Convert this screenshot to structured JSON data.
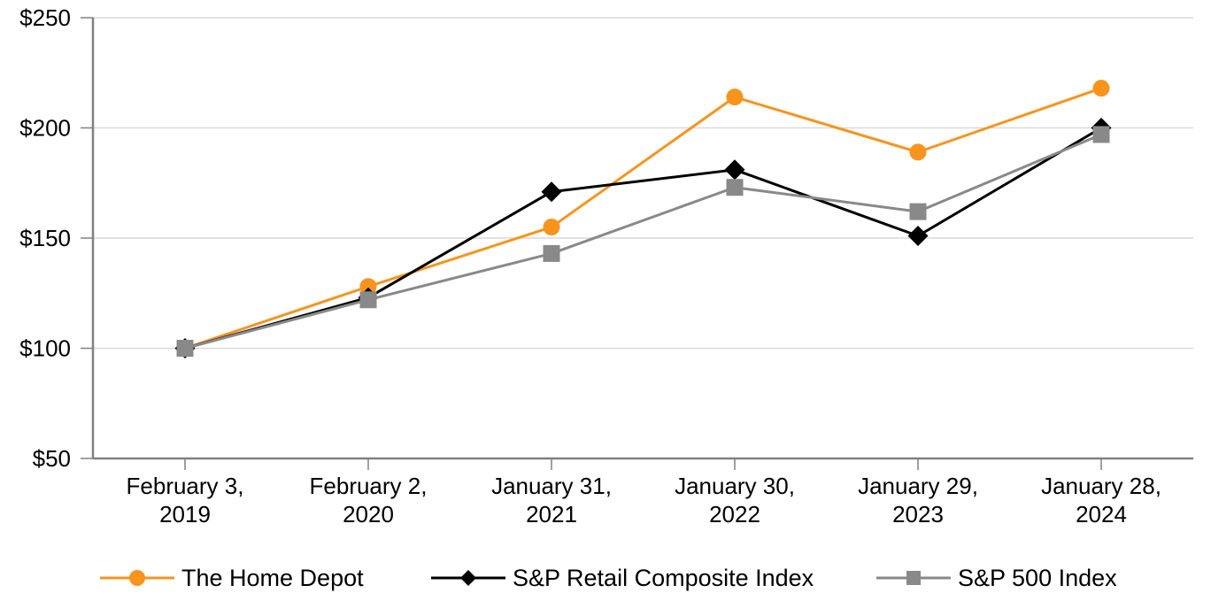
{
  "chart_data": {
    "type": "line",
    "title": "",
    "xlabel": "",
    "ylabel": "",
    "ylim": [
      50,
      250
    ],
    "grid": true,
    "legend_position": "bottom",
    "background_color": "#ffffff",
    "axis_color": "#808080",
    "gridline_color": "#D9D9D9",
    "text_color": "#000000",
    "categories": [
      "February 3, 2019",
      "February 2, 2020",
      "January 31, 2021",
      "January 30, 2022",
      "January 29, 2023",
      "January 28, 2024"
    ],
    "y_ticks": [
      {
        "label": "$250",
        "value": 250
      },
      {
        "label": "$200",
        "value": 200
      },
      {
        "label": "$150",
        "value": 150
      },
      {
        "label": "$100",
        "value": 100
      },
      {
        "label": "$50",
        "value": 50
      }
    ],
    "series": [
      {
        "name": "The Home Depot",
        "slug": "home-depot",
        "color": "#F7941E",
        "marker": "circle",
        "values": [
          100,
          128,
          155,
          214,
          189,
          218
        ]
      },
      {
        "name": "S&P Retail Composite Index",
        "slug": "sp-retail-composite-index",
        "color": "#000000",
        "marker": "diamond",
        "values": [
          100,
          123,
          171,
          181,
          151,
          200
        ]
      },
      {
        "name": "S&P 500 Index",
        "slug": "sp-500-index",
        "color": "#898989",
        "marker": "square",
        "values": [
          100,
          122,
          143,
          173,
          162,
          197
        ]
      }
    ]
  }
}
